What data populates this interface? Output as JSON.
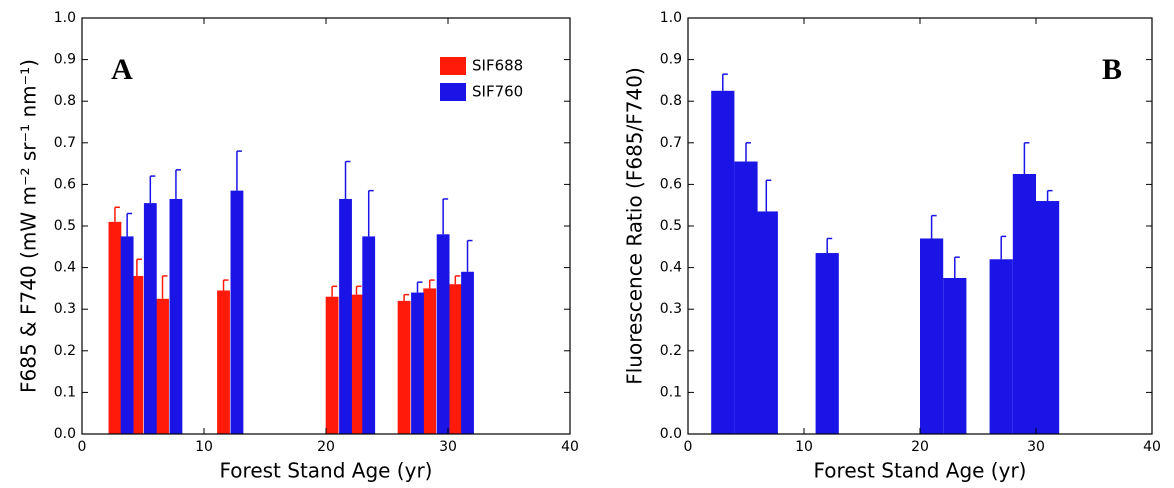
{
  "chart_data": [
    {
      "type": "bar",
      "annotation": "A",
      "xlabel": "Forest Stand Age (yr)",
      "ylabel": "F685 & F740 (mW m⁻² sr⁻¹ nm⁻¹)",
      "xlim": [
        0,
        40
      ],
      "xticks": [
        0,
        10,
        20,
        30,
        40
      ],
      "ylim": [
        0,
        1
      ],
      "yticks": [
        {
          "value": 0,
          "label": "0.0"
        },
        0.1,
        0.2,
        0.3,
        0.4,
        0.5,
        0.6,
        0.7,
        0.8,
        0.9,
        {
          "value": 1,
          "label": "1.0"
        }
      ],
      "legend": "upper right",
      "series": [
        {
          "name": "SIF688",
          "color": "#ff1a0a",
          "x": [
            2.7,
            4.5,
            6.6,
            11.6,
            20.5,
            22.5,
            26.4,
            28.5,
            30.6
          ],
          "values": [
            0.51,
            0.38,
            0.325,
            0.345,
            0.33,
            0.335,
            0.32,
            0.35,
            0.36
          ],
          "errors": [
            0.035,
            0.04,
            0.055,
            0.025,
            0.025,
            0.02,
            0.015,
            0.02,
            0.02
          ]
        },
        {
          "name": "SIF760",
          "color": "#1a14e6",
          "x": [
            3.7,
            5.6,
            7.7,
            12.7,
            21.6,
            23.5,
            27.5,
            29.6,
            31.6
          ],
          "values": [
            0.475,
            0.555,
            0.565,
            0.585,
            0.565,
            0.475,
            0.34,
            0.48,
            0.39
          ],
          "errors": [
            0.055,
            0.065,
            0.07,
            0.095,
            0.09,
            0.11,
            0.025,
            0.085,
            0.075
          ]
        }
      ]
    },
    {
      "type": "bar",
      "annotation": "B",
      "xlabel": "Forest Stand Age (yr)",
      "ylabel": "Fluorescence Ratio (F685/F740)",
      "xlim": [
        0,
        40
      ],
      "xticks": [
        0,
        10,
        20,
        30,
        40
      ],
      "ylim": [
        0,
        1
      ],
      "yticks": [
        {
          "value": 0,
          "label": "0.0"
        },
        0.1,
        0.2,
        0.3,
        0.4,
        0.5,
        0.6,
        0.7,
        0.8,
        0.9,
        {
          "value": 1,
          "label": "1.0"
        }
      ],
      "series": [
        {
          "color": "#1a14e6",
          "x": [
            3,
            5,
            6.75,
            12,
            21,
            23,
            27,
            29,
            31
          ],
          "values": [
            0.825,
            0.655,
            0.535,
            0.435,
            0.47,
            0.375,
            0.42,
            0.625,
            0.56
          ],
          "errors": [
            0.04,
            0.045,
            0.075,
            0.035,
            0.055,
            0.05,
            0.055,
            0.075,
            0.025
          ]
        }
      ]
    }
  ]
}
